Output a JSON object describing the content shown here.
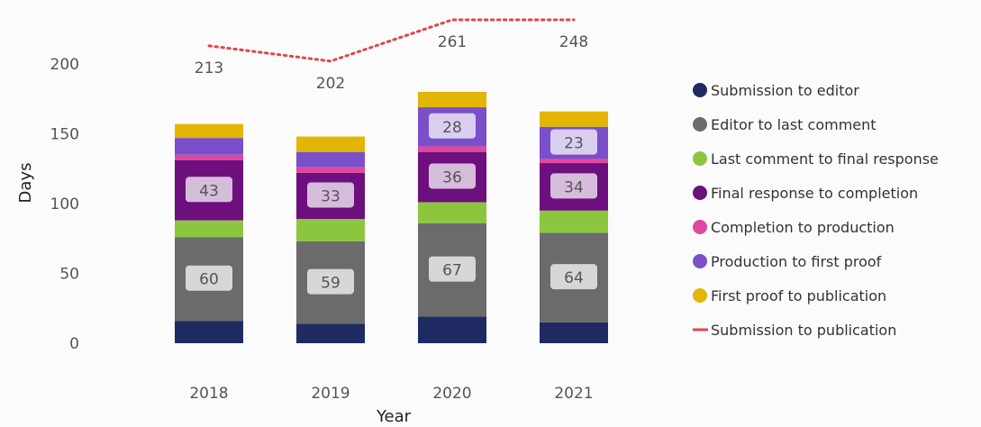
{
  "chart_data": {
    "type": "bar",
    "stacked": true,
    "categories": [
      "2018",
      "2019",
      "2020",
      "2021"
    ],
    "xlabel": "Year",
    "ylabel": "Days",
    "ylim": [
      0,
      225
    ],
    "yticks": [
      0,
      50,
      100,
      150,
      200
    ],
    "grid": false,
    "legend_position": "right",
    "series": [
      {
        "name": "Submission to editor",
        "color": "#1f2a63",
        "values": [
          16,
          14,
          19,
          15
        ],
        "labels": [
          null,
          null,
          null,
          null
        ]
      },
      {
        "name": "Editor to last comment",
        "color": "#6b6b6b",
        "values": [
          60,
          59,
          67,
          64
        ],
        "labels": [
          "60",
          "59",
          "67",
          "64"
        ]
      },
      {
        "name": "Last comment to final response",
        "color": "#8cc63f",
        "values": [
          12,
          16,
          15,
          16
        ],
        "labels": [
          null,
          null,
          null,
          null
        ]
      },
      {
        "name": "Final response to completion",
        "color": "#6e0f7e",
        "values": [
          43,
          33,
          36,
          34
        ],
        "labels": [
          "43",
          "33",
          "36",
          "34"
        ]
      },
      {
        "name": "Completion to production",
        "color": "#e0479e",
        "values": [
          4,
          4,
          4,
          3
        ],
        "labels": [
          null,
          null,
          null,
          null
        ]
      },
      {
        "name": "Production to first proof",
        "color": "#7a4fc9",
        "values": [
          12,
          11,
          28,
          23
        ],
        "labels": [
          null,
          null,
          "28",
          "23"
        ]
      },
      {
        "name": "First proof to publication",
        "color": "#e3b505",
        "values": [
          10,
          11,
          11,
          11
        ],
        "labels": [
          null,
          null,
          null,
          null
        ]
      }
    ],
    "line_series": {
      "name": "Submission to publication",
      "color": "#e0454f",
      "style": "dotted",
      "values": [
        213,
        202,
        261,
        248
      ],
      "labels": [
        "213",
        "202",
        "261",
        "248"
      ],
      "clipped_at_top": true
    }
  }
}
